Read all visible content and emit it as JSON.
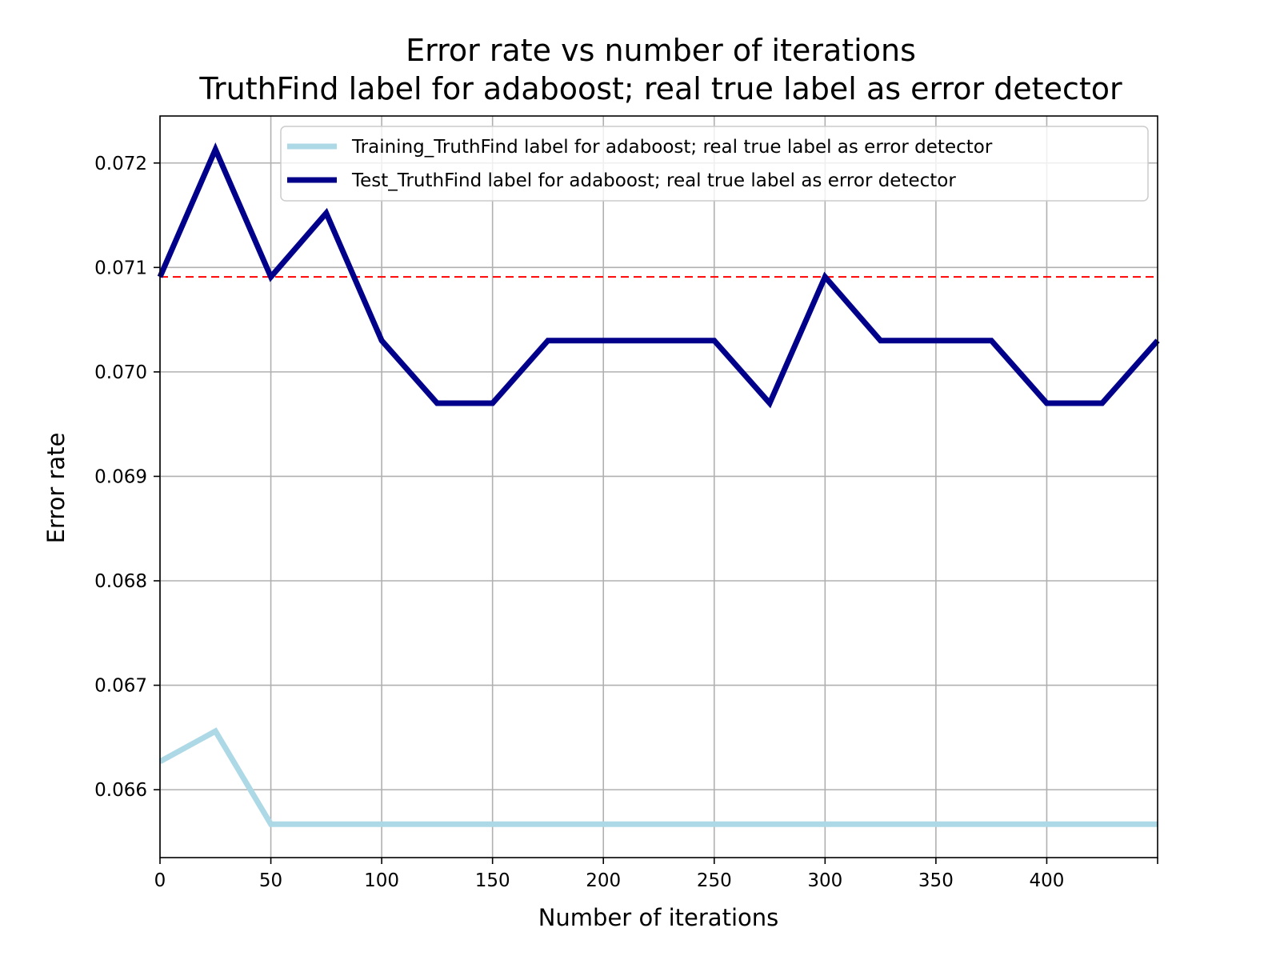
{
  "chart_data": {
    "type": "line",
    "title": "Error rate vs number of iterations",
    "subtitle": "TruthFind label for adaboost; real true label as error detector",
    "xlabel": "Number of iterations",
    "ylabel": "Error rate",
    "xlim": [
      0,
      450
    ],
    "ylim": [
      0.06535,
      0.07245
    ],
    "x_ticks": [
      0,
      50,
      100,
      150,
      200,
      250,
      300,
      350,
      400
    ],
    "y_ticks": [
      0.066,
      0.067,
      0.068,
      0.069,
      0.07,
      0.071,
      0.072
    ],
    "x_tick_labels": [
      "0",
      "50",
      "100",
      "150",
      "200",
      "250",
      "300",
      "350",
      "400"
    ],
    "y_tick_labels": [
      "0.066",
      "0.067",
      "0.068",
      "0.069",
      "0.070",
      "0.071",
      "0.072"
    ],
    "grid": true,
    "legend_position": "top-right",
    "x": [
      0,
      25,
      50,
      75,
      100,
      125,
      150,
      175,
      200,
      225,
      250,
      275,
      300,
      325,
      350,
      375,
      400,
      425,
      450
    ],
    "series": [
      {
        "name": "Training_TruthFind label for adaboost; real true label as error detector",
        "color": "#add8e6",
        "values": [
          0.06627,
          0.06656,
          0.06567,
          0.06567,
          0.06567,
          0.06567,
          0.06567,
          0.06567,
          0.06567,
          0.06567,
          0.06567,
          0.06567,
          0.06567,
          0.06567,
          0.06567,
          0.06567,
          0.06567,
          0.06567,
          0.06567
        ]
      },
      {
        "name": "Test_TruthFind label for adaboost; real true label as error detector",
        "color": "#00008b",
        "values": [
          0.07091,
          0.07213,
          0.07091,
          0.07152,
          0.0703,
          0.0697,
          0.0697,
          0.0703,
          0.0703,
          0.0703,
          0.0703,
          0.0697,
          0.07091,
          0.0703,
          0.0703,
          0.0703,
          0.0697,
          0.0697,
          0.0703
        ]
      }
    ],
    "reference_line": {
      "y": 0.07091,
      "color": "#ff0000",
      "style": "dashed"
    }
  }
}
